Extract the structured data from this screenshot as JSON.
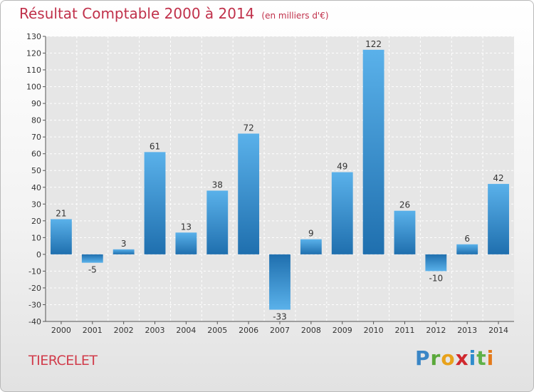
{
  "chart_data": {
    "type": "bar",
    "title": "Résultat Comptable 2000 à 2014",
    "subtitle": "(en milliers d'€)",
    "categories": [
      "2000",
      "2001",
      "2002",
      "2003",
      "2004",
      "2005",
      "2006",
      "2007",
      "2008",
      "2009",
      "2010",
      "2011",
      "2012",
      "2013",
      "2014"
    ],
    "values": [
      21,
      -5,
      3,
      61,
      13,
      38,
      72,
      -33,
      9,
      49,
      122,
      26,
      -10,
      6,
      42
    ],
    "ylim": [
      -40,
      130
    ],
    "yticks": [
      130,
      120,
      110,
      100,
      90,
      80,
      70,
      60,
      50,
      40,
      30,
      20,
      10,
      0,
      -10,
      -20,
      -30,
      -40
    ],
    "grid": true,
    "xlabel": "",
    "ylabel": ""
  },
  "footer": {
    "town": "TIERCELET",
    "brand": "Proxiti"
  },
  "colors": {
    "bar_top": "#5ab1ea",
    "bar_bottom": "#1f6fae",
    "plot_bg": "#e6e6e6",
    "title": "#c0304a"
  }
}
